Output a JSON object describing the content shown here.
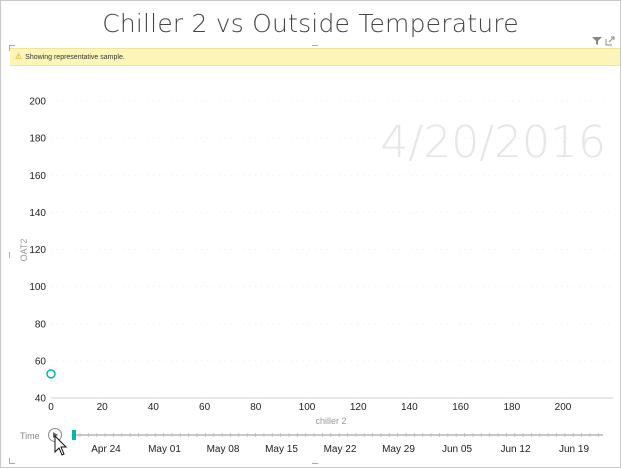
{
  "window": {
    "title": "Chiller 2 vs Outside Temperature",
    "banner": "Showing representative sample.",
    "icons": [
      "filter-icon",
      "focus-mode-icon"
    ]
  },
  "play_axis": {
    "label": "Time",
    "current_date": "4/20/2016",
    "ticks": [
      "Apr 24",
      "May 01",
      "May 08",
      "May 15",
      "May 22",
      "May 29",
      "Jun 05",
      "Jun 12",
      "Jun 19"
    ],
    "progress": 0.0,
    "accent": "#01b8aa"
  },
  "chart_data": {
    "type": "scatter",
    "title": "Chiller 2 vs Outside Temperature",
    "xlabel": "chiller 2",
    "ylabel": "OAT2",
    "xlim": [
      0,
      215
    ],
    "ylim": [
      40,
      210
    ],
    "xticks": [
      0,
      20,
      40,
      60,
      80,
      100,
      120,
      140,
      160,
      180,
      200
    ],
    "yticks": [
      40,
      60,
      80,
      100,
      120,
      140,
      160,
      180,
      200
    ],
    "grid": true,
    "series": [
      {
        "points": [
          {
            "x": 0,
            "y": 53
          }
        ],
        "color": "#01b8aa"
      }
    ]
  }
}
